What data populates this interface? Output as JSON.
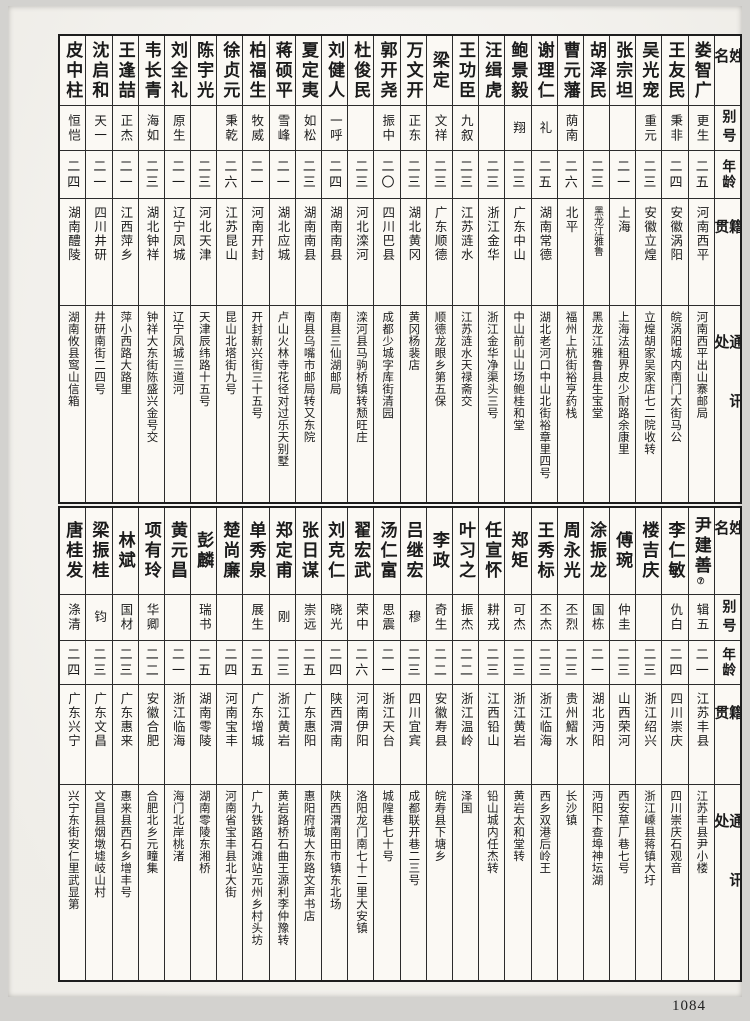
{
  "page": {
    "number": "1084"
  },
  "headers": {
    "name": "姓名",
    "alias": "别号",
    "age": "年龄",
    "native": "籍贯",
    "address": "通讯处"
  },
  "tables": [
    {
      "entries": [
        {
          "name": "娄智广",
          "alias": "更生",
          "age": "二五",
          "native": "河南西平",
          "address": "河南西平出山寨邮局"
        },
        {
          "name": "王友民",
          "alias": "秉非",
          "age": "二四",
          "native": "安徽涡阳",
          "address": "皖涡阳城内南门大街马公"
        },
        {
          "name": "吴光宠",
          "alias": "重元",
          "age": "二三",
          "native": "安徽立煌",
          "address": "立煌胡家吴家店七二院收转"
        },
        {
          "name": "张宗坦",
          "alias": "",
          "age": "二一",
          "native": "上海",
          "address": "上海法租界皮少耐路余康里"
        },
        {
          "name": "胡泽民",
          "alias": "",
          "age": "二三",
          "native": "黑龙江雅鲁",
          "address": "黑龙江雅鲁县生宝堂"
        },
        {
          "name": "曹元藩",
          "alias": "荫南",
          "age": "二六",
          "native": "北平",
          "address": "福州上杭街裕亨药栈"
        },
        {
          "name": "谢理仁",
          "alias": "礼",
          "age": "二五",
          "native": "湖南常德",
          "address": "湖北老河口中山北街裕章里四号"
        },
        {
          "name": "鲍景毅",
          "alias": "翔",
          "age": "二三",
          "native": "广东中山",
          "address": "中山前山山场鲍桂和堂"
        },
        {
          "name": "汪缉虎",
          "alias": "",
          "age": "二三",
          "native": "浙江金华",
          "address": "浙江金华净渠头三号"
        },
        {
          "name": "王功臣",
          "alias": "九叙",
          "age": "二三",
          "native": "江苏涟水",
          "address": "江苏涟水天禄斋交"
        },
        {
          "name": "梁定",
          "alias": "文祥",
          "age": "二三",
          "native": "广东顺德",
          "address": "顺德龙眼乡第五保"
        },
        {
          "name": "万文开",
          "alias": "正东",
          "age": "二三",
          "native": "湖北黄冈",
          "address": "黄冈杨裴店"
        },
        {
          "name": "郭开尧",
          "alias": "振中",
          "age": "二〇",
          "native": "四川巴县",
          "address": "成都少城字库街清园"
        },
        {
          "name": "杜俊民",
          "alias": "",
          "age": "二三",
          "native": "河北滦河",
          "address": "滦河县马驹桥镇转颓旺庄"
        },
        {
          "name": "刘健人",
          "alias": "一呼",
          "age": "二四",
          "native": "湖南南县",
          "address": "南县三仙湖邮局"
        },
        {
          "name": "夏定夷",
          "alias": "如松",
          "age": "二三",
          "native": "湖南南县",
          "address": "南县乌嘴市邮局转又东院"
        },
        {
          "name": "蒋硕平",
          "alias": "雪峰",
          "age": "二一",
          "native": "湖北应城",
          "address": "卢山火林寺花径对过乐天别墅"
        },
        {
          "name": "柏福生",
          "alias": "牧威",
          "age": "二一",
          "native": "河南开封",
          "address": "开封新兴街三十五号"
        },
        {
          "name": "徐贞元",
          "alias": "秉乾",
          "age": "二六",
          "native": "江苏昆山",
          "address": "昆山北塔街九号"
        },
        {
          "name": "陈宇光",
          "alias": "",
          "age": "二三",
          "native": "河北天津",
          "address": "天津辰纬路十五号"
        },
        {
          "name": "刘全礼",
          "alias": "原生",
          "age": "二一",
          "native": "辽宁凤城",
          "address": "辽宁凤城三道河"
        },
        {
          "name": "韦长青",
          "alias": "海如",
          "age": "二三",
          "native": "湖北钟祥",
          "address": "钟祥大东街陈盛兴金号交"
        },
        {
          "name": "王逢喆",
          "alias": "正杰",
          "age": "二一",
          "native": "江西萍乡",
          "address": "萍小西路大路里"
        },
        {
          "name": "沈启和",
          "alias": "天一",
          "age": "二一",
          "native": "四川井研",
          "address": "井研南街二四号"
        },
        {
          "name": "皮中柱",
          "alias": "恒恺",
          "age": "二四",
          "native": "湖南醴陵",
          "address": "湖南攸县窎山信箱"
        }
      ]
    },
    {
      "entries": [
        {
          "name": "尹建善",
          "name_note": "⑦",
          "alias": "辑五",
          "age": "二一",
          "native": "江苏丰县",
          "address": "江苏丰县尹小楼"
        },
        {
          "name": "李仁敏",
          "alias": "仇白",
          "age": "二四",
          "native": "四川崇庆",
          "address": "四川崇庆石观音"
        },
        {
          "name": "楼吉庆",
          "alias": "",
          "age": "二三",
          "native": "浙江绍兴",
          "address": "浙江嵊县蒋镇大圩"
        },
        {
          "name": "傅琬",
          "alias": "仲圭",
          "age": "二三",
          "native": "山西荣河",
          "address": "西安草厂巷七号"
        },
        {
          "name": "涂振龙",
          "alias": "国栋",
          "age": "二一",
          "native": "湖北沔阳",
          "address": "沔阳下查埠神坛湖"
        },
        {
          "name": "周永光",
          "alias": "丕烈",
          "age": "二三",
          "native": "贵州鰼水",
          "address": "长沙镇"
        },
        {
          "name": "王秀标",
          "alias": "丕杰",
          "age": "二三",
          "native": "浙江临海",
          "address": "西乡双港后岭王"
        },
        {
          "name": "郑矩",
          "alias": "可杰",
          "age": "二三",
          "native": "浙江黄岩",
          "address": "黄岩太和堂转"
        },
        {
          "name": "任宣怀",
          "alias": "耕戎",
          "age": "二三",
          "native": "江西铅山",
          "address": "铅山城内任杰转"
        },
        {
          "name": "叶习之",
          "alias": "振杰",
          "age": "二二",
          "native": "浙江温岭",
          "address": "泽国"
        },
        {
          "name": "李政",
          "alias": "奇生",
          "age": "二二",
          "native": "安徽寿县",
          "address": "皖寿县下塘乡"
        },
        {
          "name": "吕继宏",
          "alias": "穆",
          "age": "二三",
          "native": "四川宜宾",
          "address": "成都联开巷二三号"
        },
        {
          "name": "汤仁富",
          "alias": "思震",
          "age": "二一",
          "native": "浙江天台",
          "address": "城隍巷七十号"
        },
        {
          "name": "翟宏武",
          "alias": "荣中",
          "age": "二六",
          "native": "河南伊阳",
          "address": "洛阳龙门南七十二里大安镇"
        },
        {
          "name": "刘克仁",
          "alias": "晓光",
          "age": "二四",
          "native": "陕西渭南",
          "address": "陕西渭南田市镇东北场"
        },
        {
          "name": "张日谋",
          "alias": "崇远",
          "age": "二五",
          "native": "广东惠阳",
          "address": "惠阳府城大东路文声书店"
        },
        {
          "name": "郑定甫",
          "alias": "刚",
          "age": "二三",
          "native": "浙江黄岩",
          "address": "黄岩路桥石曲王源利李仲豫转"
        },
        {
          "name": "单秀泉",
          "alias": "展生",
          "age": "二五",
          "native": "广东增城",
          "address": "广九铁路石滩站元州乡村头坊"
        },
        {
          "name": "楚尚廉",
          "alias": "",
          "age": "二四",
          "native": "河南宝丰",
          "address": "河南省宝丰县北大街"
        },
        {
          "name": "彭麟",
          "alias": "瑞书",
          "age": "二五",
          "native": "湖南零陵",
          "address": "湖南零陵东湘桥"
        },
        {
          "name": "黄元昌",
          "alias": "",
          "age": "二一",
          "native": "浙江临海",
          "address": "海门北岸桃渚"
        },
        {
          "name": "项有玲",
          "alias": "华卿",
          "age": "二二",
          "native": "安徽合肥",
          "address": "合肥北乡元疃集"
        },
        {
          "name": "林斌",
          "alias": "国材",
          "age": "二三",
          "native": "广东惠来",
          "address": "惠来县西石乡增丰号"
        },
        {
          "name": "梁振桂",
          "alias": "钧",
          "age": "二三",
          "native": "广东文昌",
          "address": "文昌县烟墩墟岐山村"
        },
        {
          "name": "唐桂发",
          "alias": "涤清",
          "age": "二四",
          "native": "广东兴宁",
          "address": "兴宁东街安仁里武显第"
        }
      ]
    }
  ]
}
